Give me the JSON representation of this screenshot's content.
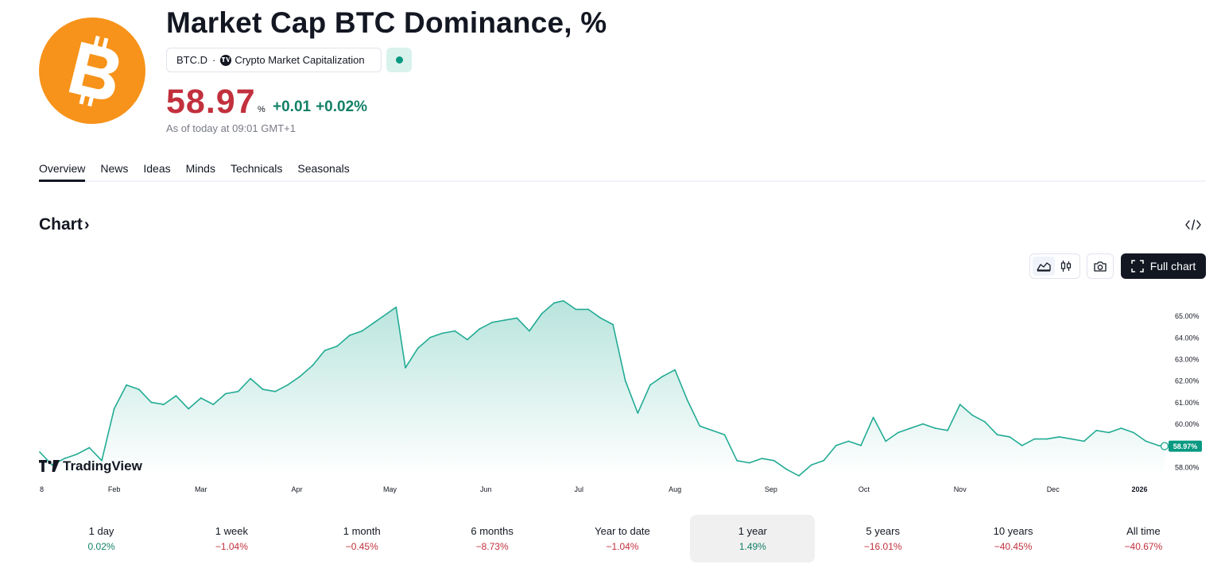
{
  "header": {
    "title": "Market Cap BTC Dominance, %",
    "symbol": "BTC.D",
    "separator": "·",
    "source": "Crypto Market Capitalization",
    "price": "58.97",
    "price_unit": "%",
    "change_abs": "+0.01",
    "change_pct": "+0.02%",
    "as_of": "As of today at 09:01 GMT+1",
    "logo_icon": "bitcoin-icon",
    "source_icon": "tradingview-badge-icon",
    "status_color": "#089981"
  },
  "tabs": [
    {
      "label": "Overview",
      "active": true
    },
    {
      "label": "News"
    },
    {
      "label": "Ideas"
    },
    {
      "label": "Minds"
    },
    {
      "label": "Technicals"
    },
    {
      "label": "Seasonals"
    }
  ],
  "chart_section": {
    "title": "Chart",
    "chevron": "›",
    "embed_icon": "code-embed-icon",
    "full_chart_label": "Full chart",
    "watermark": "TradingView"
  },
  "chart_data": {
    "type": "area",
    "title": "",
    "xlabel": "",
    "ylabel": "",
    "x_ticks": [
      "8",
      "Feb",
      "Mar",
      "Apr",
      "May",
      "Jun",
      "Jul",
      "Aug",
      "Sep",
      "Oct",
      "Nov",
      "Dec",
      "2026"
    ],
    "y_ticks": [
      "58.00%",
      "59.00%",
      "60.00%",
      "61.00%",
      "62.00%",
      "63.00%",
      "64.00%",
      "65.00%"
    ],
    "ylim": [
      57.5,
      65.8
    ],
    "last_value_label": "58.97%",
    "line_color": "#22ab94",
    "series": [
      {
        "x": [
          "Jan 8",
          "Jan 12",
          "Jan 16",
          "Jan 20",
          "Jan 24",
          "Jan 28",
          "Feb 1",
          "Feb 5",
          "Feb 9",
          "Feb 13",
          "Feb 17",
          "Feb 21",
          "Feb 25",
          "Mar 1",
          "Mar 5",
          "Mar 9",
          "Mar 13",
          "Mar 17",
          "Mar 21",
          "Mar 25",
          "Mar 29",
          "Apr 2",
          "Apr 6",
          "Apr 10",
          "Apr 14",
          "Apr 18",
          "Apr 22",
          "Apr 26",
          "Apr 30",
          "May 3",
          "May 6",
          "May 10",
          "May 14",
          "May 18",
          "May 22",
          "May 26",
          "May 30",
          "Jun 3",
          "Jun 7",
          "Jun 11",
          "Jun 15",
          "Jun 19",
          "Jun 23",
          "Jun 26",
          "Jun 30",
          "Jul 4",
          "Jul 8",
          "Jul 12",
          "Jul 16",
          "Jul 20",
          "Jul 24",
          "Jul 28",
          "Aug 1",
          "Aug 5",
          "Aug 9",
          "Aug 13",
          "Aug 17",
          "Aug 21",
          "Aug 25",
          "Aug 29",
          "Sep 2",
          "Sep 6",
          "Sep 10",
          "Sep 14",
          "Sep 18",
          "Sep 22",
          "Sep 26",
          "Sep 30",
          "Oct 4",
          "Oct 8",
          "Oct 12",
          "Oct 16",
          "Oct 20",
          "Oct 24",
          "Oct 28",
          "Nov 1",
          "Nov 5",
          "Nov 9",
          "Nov 13",
          "Nov 17",
          "Nov 21",
          "Nov 25",
          "Nov 29",
          "Dec 3",
          "Dec 7",
          "Dec 11",
          "Dec 15",
          "Dec 19",
          "Dec 23",
          "Dec 27",
          "Dec 31",
          "Jan 4",
          "Jan 6"
        ],
        "y": [
          58.7,
          58.1,
          58.4,
          58.6,
          58.9,
          58.3,
          60.7,
          61.8,
          61.6,
          61.0,
          60.9,
          61.3,
          60.7,
          61.2,
          60.9,
          61.4,
          61.5,
          62.1,
          61.6,
          61.5,
          61.8,
          62.2,
          62.7,
          63.4,
          63.6,
          64.1,
          64.3,
          64.7,
          65.1,
          65.4,
          62.6,
          63.5,
          64.0,
          64.2,
          64.3,
          63.9,
          64.4,
          64.7,
          64.8,
          64.9,
          64.3,
          65.1,
          65.6,
          65.7,
          65.3,
          65.3,
          64.9,
          64.6,
          62.0,
          60.5,
          61.8,
          62.2,
          62.5,
          61.1,
          59.9,
          59.7,
          59.5,
          58.3,
          58.2,
          58.4,
          58.3,
          57.9,
          57.6,
          58.1,
          58.3,
          59.0,
          59.2,
          59.0,
          60.3,
          59.2,
          59.6,
          59.8,
          60.0,
          59.8,
          59.7,
          60.9,
          60.4,
          60.1,
          59.5,
          59.4,
          59.0,
          59.3,
          59.3,
          59.4,
          59.3,
          59.2,
          59.7,
          59.6,
          59.8,
          59.6,
          59.2,
          59.0,
          58.97
        ]
      }
    ],
    "legend": "none",
    "grid": false
  },
  "periods": [
    {
      "label": "1 day",
      "value": "0.02%",
      "dir": "pos"
    },
    {
      "label": "1 week",
      "value": "−1.04%",
      "dir": "neg"
    },
    {
      "label": "1 month",
      "value": "−0.45%",
      "dir": "neg"
    },
    {
      "label": "6 months",
      "value": "−8.73%",
      "dir": "neg"
    },
    {
      "label": "Year to date",
      "value": "−1.04%",
      "dir": "neg"
    },
    {
      "label": "1 year",
      "value": "1.49%",
      "dir": "pos",
      "active": true
    },
    {
      "label": "5 years",
      "value": "−16.01%",
      "dir": "neg"
    },
    {
      "label": "10 years",
      "value": "−40.45%",
      "dir": "neg"
    },
    {
      "label": "All time",
      "value": "−40.67%",
      "dir": "neg"
    }
  ]
}
